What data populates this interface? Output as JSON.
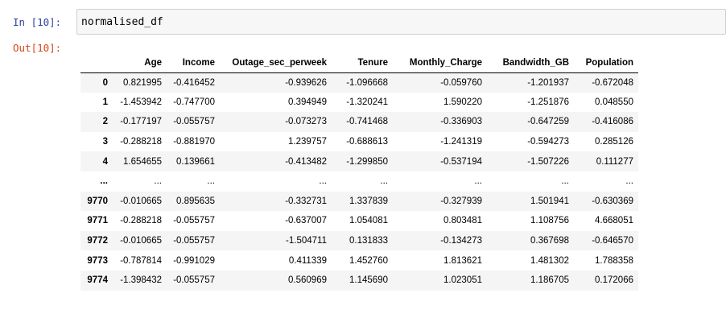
{
  "in_prompt": "In [10]:",
  "out_prompt": "Out[10]:",
  "input_code": "normalised_df",
  "table": {
    "columns": [
      "",
      "Age",
      "Income",
      "Outage_sec_perweek",
      "Tenure",
      "Monthly_Charge",
      "Bandwidth_GB",
      "Population"
    ],
    "rows": [
      [
        "0",
        "0.821995",
        "-0.416452",
        "-0.939626",
        "-1.096668",
        "-0.059760",
        "-1.201937",
        "-0.672048"
      ],
      [
        "1",
        "-1.453942",
        "-0.747700",
        "0.394949",
        "-1.320241",
        "1.590220",
        "-1.251876",
        "0.048550"
      ],
      [
        "2",
        "-0.177197",
        "-0.055757",
        "-0.073273",
        "-0.741468",
        "-0.336903",
        "-0.647259",
        "-0.416086"
      ],
      [
        "3",
        "-0.288218",
        "-0.881970",
        "1.239757",
        "-0.688613",
        "-1.241319",
        "-0.594273",
        "0.285126"
      ],
      [
        "4",
        "1.654655",
        "0.139661",
        "-0.413482",
        "-1.299850",
        "-0.537194",
        "-1.507226",
        "0.111277"
      ],
      [
        "...",
        "...",
        "...",
        "...",
        "...",
        "...",
        "...",
        "..."
      ],
      [
        "9770",
        "-0.010665",
        "0.895635",
        "-0.332731",
        "1.337839",
        "-0.327939",
        "1.501941",
        "-0.630369"
      ],
      [
        "9771",
        "-0.288218",
        "-0.055757",
        "-0.637007",
        "1.054081",
        "0.803481",
        "1.108756",
        "4.668051"
      ],
      [
        "9772",
        "-0.010665",
        "-0.055757",
        "-1.504711",
        "0.131833",
        "-0.134273",
        "0.367698",
        "-0.646570"
      ],
      [
        "9773",
        "-0.787814",
        "-0.991029",
        "0.411339",
        "1.452760",
        "1.813621",
        "1.481302",
        "1.788358"
      ],
      [
        "9774",
        "-1.398432",
        "-0.055757",
        "0.560969",
        "1.145690",
        "1.023051",
        "1.186705",
        "0.172066"
      ]
    ]
  }
}
